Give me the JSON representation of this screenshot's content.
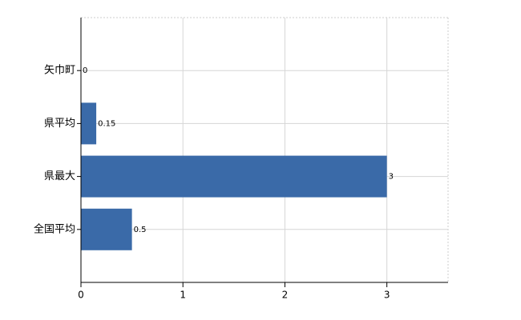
{
  "chart_data": {
    "type": "barh",
    "categories": [
      "矢巾町",
      "県平均",
      "県最大",
      "全国平均"
    ],
    "values": [
      0,
      0.15,
      3,
      0.5
    ],
    "color": "#3a6aa8",
    "xlim": [
      0,
      3.6
    ],
    "xticks": [
      0,
      1,
      2,
      3
    ],
    "grid": true
  }
}
